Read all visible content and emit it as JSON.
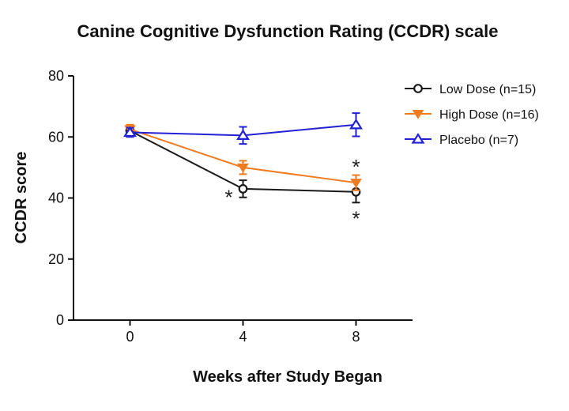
{
  "chart_data": {
    "type": "line",
    "title": "Canine Cognitive Dysfunction Rating (CCDR) scale",
    "xlabel": "Weeks after Study Began",
    "ylabel": "CCDR score",
    "x": [
      0,
      4,
      8
    ],
    "x_tick_labels": [
      "0",
      "4",
      "8"
    ],
    "xlim": [
      -2,
      10
    ],
    "ylim": [
      0,
      80
    ],
    "y_ticks": [
      0,
      20,
      40,
      60,
      80
    ],
    "y_tick_labels": [
      "0",
      "20",
      "40",
      "60",
      "80"
    ],
    "grid": false,
    "legend_position": "top-right",
    "series": [
      {
        "name": "Low Dose (n=15)",
        "marker": "circle",
        "color": "#1a1a1a",
        "values": [
          62,
          43,
          42
        ],
        "errors": [
          1.5,
          2.8,
          3.5
        ]
      },
      {
        "name": "High Dose (n=16)",
        "marker": "triangle-down",
        "color": "#f07c22",
        "values": [
          62.5,
          50,
          45
        ],
        "errors": [
          1.5,
          2.2,
          2.5
        ]
      },
      {
        "name": "Placebo (n=7)",
        "marker": "triangle-up",
        "color": "#2121d6",
        "values": [
          61.5,
          60.5,
          64
        ],
        "errors": [
          1.5,
          2.8,
          3.8
        ]
      }
    ],
    "annotations": [
      {
        "text": "*",
        "x": 4,
        "y": 41,
        "side": "left"
      },
      {
        "text": "*",
        "x": 8,
        "y": 51,
        "side": "center"
      },
      {
        "text": "*",
        "x": 8,
        "y": 34,
        "side": "center"
      }
    ]
  }
}
